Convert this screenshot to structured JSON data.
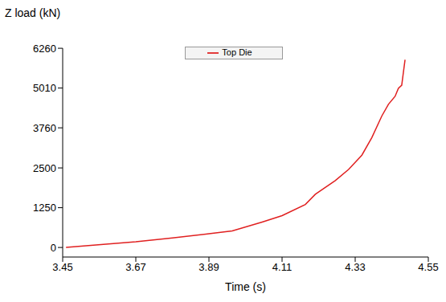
{
  "chart_data": {
    "type": "line",
    "x_label": "Time (s)",
    "y_label": "Z load (kN)",
    "xlim": [
      3.45,
      4.55
    ],
    "xticks": [
      3.45,
      3.67,
      3.89,
      4.11,
      4.33,
      4.55
    ],
    "ylim": [
      -300,
      6260
    ],
    "yticks": [
      0,
      1250,
      2500,
      3760,
      5010,
      6260
    ],
    "grid": false,
    "legend": "top",
    "x": [
      3.46,
      3.55,
      3.67,
      3.78,
      3.89,
      3.96,
      4.05,
      4.11,
      4.18,
      4.21,
      4.27,
      4.31,
      4.35,
      4.38,
      4.41,
      4.43,
      4.45,
      4.46,
      4.47,
      4.475,
      4.48
    ],
    "series": [
      {
        "name": "Top Die",
        "color": "#e02020",
        "values": [
          0,
          80,
          180,
          300,
          430,
          520,
          800,
          1000,
          1350,
          1670,
          2100,
          2450,
          2900,
          3450,
          4130,
          4500,
          4750,
          5000,
          5100,
          5500,
          5900
        ]
      }
    ]
  }
}
